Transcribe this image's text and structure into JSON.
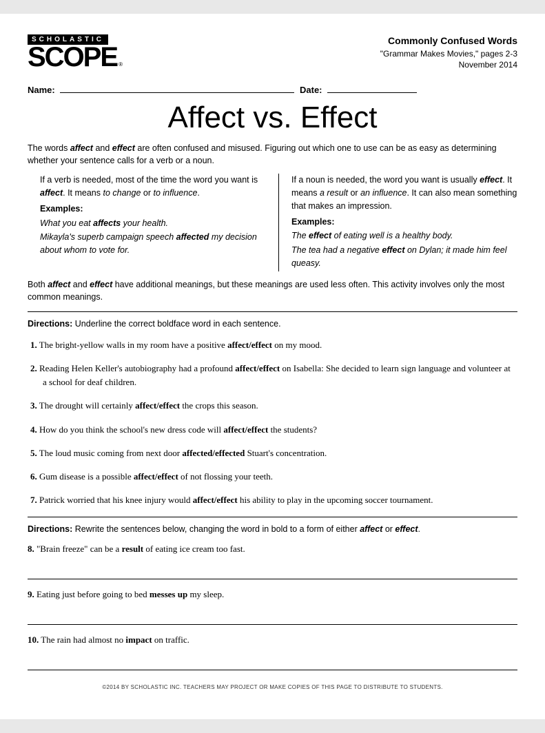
{
  "header": {
    "brand_top": "SCHOLASTIC",
    "brand_main": "SCOPE",
    "category": "Commonly Confused Words",
    "subtitle": "\"Grammar Makes Movies,\" pages 2-3",
    "issue": "November 2014"
  },
  "fields": {
    "name_label": "Name:",
    "date_label": "Date:"
  },
  "title": "Affect vs. Effect",
  "intro": {
    "pre": "The words ",
    "w1": "affect",
    "mid1": " and ",
    "w2": "effect",
    "post": " are often confused and misused. Figuring out which one to use can be as easy as determining whether your sentence calls for a verb or a noun."
  },
  "left_col": {
    "p1_a": "If a verb is needed, most of the time the word you want is ",
    "p1_b": "affect",
    "p1_c": ". It means ",
    "p1_d": "to change",
    "p1_e": " or ",
    "p1_f": "to influence",
    "p1_g": ".",
    "ex_label": "Examples:",
    "ex1_a": "What you eat ",
    "ex1_b": "affects",
    "ex1_c": " your health.",
    "ex2_a": "Mikayla's superb campaign speech ",
    "ex2_b": "affected",
    "ex2_c": " my decision about whom to vote for."
  },
  "right_col": {
    "p1_a": "If a noun is needed, the word you want is usually ",
    "p1_b": "effect",
    "p1_c": ". It means ",
    "p1_d": "a result",
    "p1_e": " or ",
    "p1_f": "an influence",
    "p1_g": ". It can also mean something that makes an impression.",
    "ex_label": "Examples:",
    "ex1_a": "The ",
    "ex1_b": "effect",
    "ex1_c": " of eating well is a healthy body.",
    "ex2_a": "The tea had a negative ",
    "ex2_b": "effect",
    "ex2_c": " on Dylan; it made him feel queasy."
  },
  "note": {
    "a": "Both ",
    "b": "affect",
    "c": " and ",
    "d": "effect",
    "e": " have additional meanings, but these meanings are used less often. This activity involves only the most common meanings."
  },
  "dir1": {
    "label": "Directions:",
    "text": " Underline the correct boldface word in each sentence."
  },
  "questions1": [
    {
      "n": "1.",
      "a": "The bright-yellow walls in my room have a positive ",
      "b": "affect/effect",
      "c": " on my mood."
    },
    {
      "n": "2.",
      "a": "Reading Helen Keller's autobiography had a profound ",
      "b": "affect/effect",
      "c": " on Isabella: She decided to learn sign language and volunteer at a school for deaf children."
    },
    {
      "n": "3.",
      "a": "The drought will certainly ",
      "b": "affect/effect",
      "c": " the crops this season."
    },
    {
      "n": "4.",
      "a": "How do you think the school's new dress code will ",
      "b": "affect/effect",
      "c": " the students?"
    },
    {
      "n": "5.",
      "a": "The loud music coming from next door ",
      "b": "affected/effected",
      "c": " Stuart's concentration."
    },
    {
      "n": "6.",
      "a": "Gum disease is a possible ",
      "b": "affect/effect",
      "c": " of not flossing your teeth."
    },
    {
      "n": "7.",
      "a": "Patrick worried that his knee injury would ",
      "b": "affect/effect",
      "c": " his ability to play in the upcoming soccer tournament."
    }
  ],
  "dir2": {
    "label": "Directions:",
    "a": " Rewrite the sentences below, changing the word in bold to a form of either ",
    "b": "affect",
    "c": " or ",
    "d": "effect",
    "e": "."
  },
  "questions2": [
    {
      "n": "8.",
      "a": "\"Brain freeze\" can be a ",
      "b": "result",
      "c": " of eating ice cream too fast."
    },
    {
      "n": "9.",
      "a": "Eating just before going to bed ",
      "b": "messes up",
      "c": " my sleep."
    },
    {
      "n": "10.",
      "a": "The rain had almost no ",
      "b": "impact",
      "c": " on traffic."
    }
  ],
  "footer": "©2014 BY SCHOLASTIC INC. TEACHERS MAY PROJECT OR MAKE COPIES OF THIS PAGE TO DISTRIBUTE TO STUDENTS."
}
